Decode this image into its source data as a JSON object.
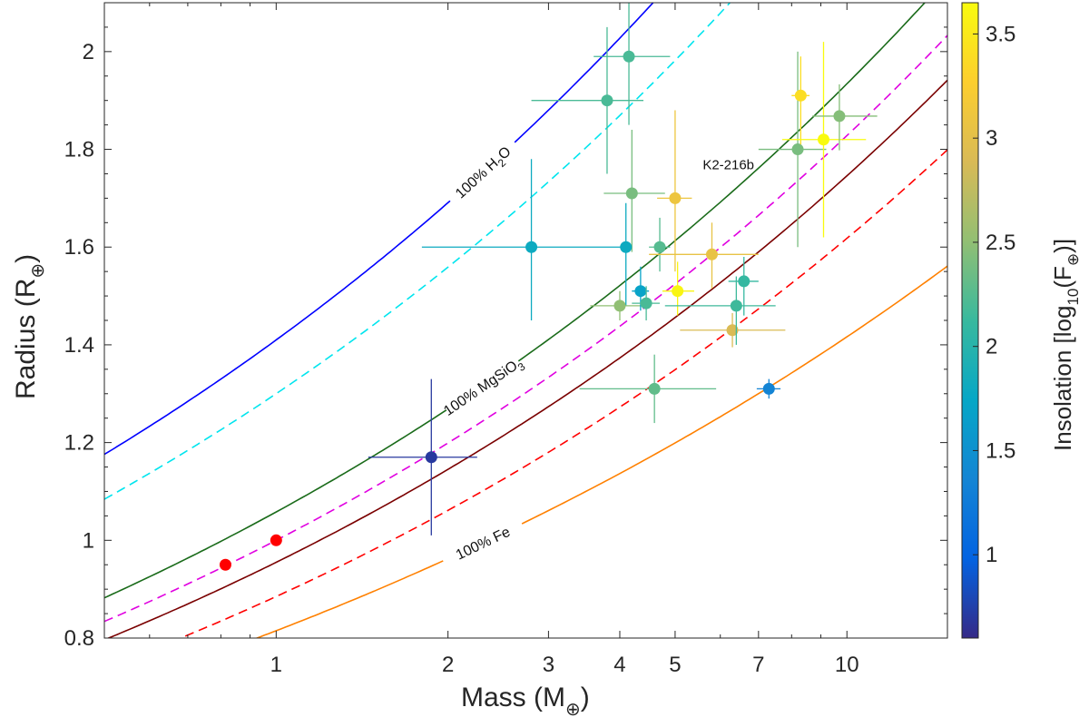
{
  "chart_data": {
    "type": "scatter",
    "xlabel": {
      "text": "Mass (M",
      "sub": "⊕",
      "close": ")"
    },
    "ylabel": {
      "text": "Radius (R",
      "sub": "⊕",
      "close": ")"
    },
    "x_scale": "log",
    "xlim": [
      0.5,
      15
    ],
    "ylim": [
      0.8,
      2.1
    ],
    "x_ticks": [
      1,
      2,
      3,
      4,
      5,
      7,
      10
    ],
    "y_ticks": [
      0.8,
      1.0,
      1.2,
      1.4,
      1.6,
      1.8,
      2.0
    ],
    "x_tick_labels": [
      "1",
      "2",
      "3",
      "4",
      "5",
      "7",
      "10"
    ],
    "y_tick_labels": [
      "0.8",
      "1",
      "1.2",
      "1.4",
      "1.6",
      "1.8",
      "2"
    ],
    "grid": false,
    "colorbar": {
      "label_text": "Insolation [log",
      "label_sub1": "10",
      "label_mid": "(F",
      "label_sub2": "⊕",
      "label_close": ")]",
      "range": [
        0.6,
        3.65
      ],
      "ticks": [
        1,
        1.5,
        2,
        2.5,
        3,
        3.5
      ],
      "tick_labels": [
        "1",
        "1.5",
        "2",
        "2.5",
        "3",
        "3.5"
      ],
      "colormap": [
        "#352a87",
        "#0363e1",
        "#1485d4",
        "#06a7c6",
        "#38b99e",
        "#92bf73",
        "#d9ba56",
        "#fcce2e",
        "#f9fb0e"
      ]
    },
    "curves": [
      {
        "name": "100% H2O",
        "color": "#0000ff",
        "dash": "solid",
        "r_at_1": 1.41,
        "exp": 0.262,
        "label_parts": [
          "100% H",
          "2",
          "O"
        ],
        "label_x": 2.3
      },
      {
        "name": "cyan-dashed",
        "color": "#00e5ee",
        "dash": "dashed",
        "r_at_1": 1.3,
        "exp": 0.262
      },
      {
        "name": "100% MgSiO3",
        "color": "#1a6b1a",
        "dash": "solid",
        "r_at_1": 1.058,
        "exp": 0.262,
        "label_parts": [
          "100% MgSiO",
          "3",
          ""
        ],
        "label_x": 2.3
      },
      {
        "name": "magenta-dashed",
        "color": "#e000e0",
        "dash": "dashed",
        "r_at_1": 1.0,
        "exp": 0.262
      },
      {
        "name": "dark-red",
        "color": "#7a0000",
        "dash": "solid",
        "r_at_1": 0.955,
        "exp": 0.262
      },
      {
        "name": "red-dashed",
        "color": "#ff0000",
        "dash": "dashed",
        "r_at_1": 0.885,
        "exp": 0.262
      },
      {
        "name": "100% Fe",
        "color": "#ff8000",
        "dash": "solid",
        "r_at_1": 0.815,
        "exp": 0.24,
        "label_parts": [
          "100% Fe",
          "",
          ""
        ],
        "label_x": 2.3
      }
    ],
    "annotation": {
      "text": "K2-216b",
      "x": 6.2,
      "y": 1.77
    },
    "points": [
      {
        "m": 0.815,
        "r": 0.95,
        "c": "red"
      },
      {
        "m": 1.0,
        "r": 1.0,
        "c": "red"
      },
      {
        "m": 1.87,
        "r": 1.17,
        "dxl": 0.42,
        "dxh": 0.38,
        "dyl": 0.16,
        "dyh": 0.16,
        "ins": 0.7
      },
      {
        "m": 2.8,
        "r": 1.6,
        "dxl": 1.0,
        "dxh": 1.3,
        "dyl": 0.15,
        "dyh": 0.18,
        "ins": 1.8
      },
      {
        "m": 3.8,
        "r": 1.9,
        "dxl": 1.0,
        "dxh": 0.6,
        "dyl": 0.15,
        "dyh": 0.15,
        "ins": 2.2
      },
      {
        "m": 4.15,
        "r": 1.99,
        "dxl": 0.55,
        "dxh": 0.75,
        "dyl": 0.14,
        "dyh": 0.11,
        "ins": 2.2
      },
      {
        "m": 4.2,
        "r": 1.71,
        "dxl": 0.45,
        "dxh": 0.6,
        "dyl": 0.12,
        "dyh": 0.13,
        "ins": 2.4
      },
      {
        "m": 4.1,
        "r": 1.6,
        "dxl": 0.02,
        "dxh": 0.02,
        "dyl": 0.12,
        "dyh": 0.09,
        "ins": 1.8
      },
      {
        "m": 4.0,
        "r": 1.48,
        "dxl": 0.45,
        "dxh": 0.5,
        "dyl": 0.03,
        "dyh": 0.03,
        "ins": 2.5
      },
      {
        "m": 4.35,
        "r": 1.51,
        "dxl": 0.15,
        "dxh": 0.15,
        "dyl": 0.04,
        "dyh": 0.05,
        "ins": 1.7
      },
      {
        "m": 4.45,
        "r": 1.485,
        "dxl": 0.25,
        "dxh": 0.25,
        "dyl": 0.035,
        "dyh": 0.035,
        "ins": 2.2
      },
      {
        "m": 4.7,
        "r": 1.6,
        "dxl": 0.2,
        "dxh": 0.2,
        "dyl": 0.05,
        "dyh": 0.06,
        "ins": 2.25
      },
      {
        "m": 4.6,
        "r": 1.31,
        "dxl": 1.2,
        "dxh": 1.3,
        "dyl": 0.07,
        "dyh": 0.07,
        "ins": 2.3
      },
      {
        "m": 5.0,
        "r": 1.7,
        "dxl": 0.35,
        "dxh": 0.35,
        "dyl": 0.15,
        "dyh": 0.18,
        "ins": 3.1
      },
      {
        "m": 5.05,
        "r": 1.51,
        "dxl": 0.3,
        "dxh": 0.35,
        "dyl": 0.05,
        "dyh": 0.06,
        "ins": 3.6
      },
      {
        "m": 5.8,
        "r": 1.585,
        "dxl": 1.3,
        "dxh": 1.2,
        "dyl": 0.07,
        "dyh": 0.065,
        "ins": 3.05
      },
      {
        "m": 6.3,
        "r": 1.43,
        "dxl": 1.2,
        "dxh": 1.5,
        "dyl": 0.035,
        "dyh": 0.035,
        "ins": 2.9
      },
      {
        "m": 6.6,
        "r": 1.53,
        "dxl": 0.4,
        "dxh": 0.4,
        "dyl": 0.07,
        "dyh": 0.05,
        "ins": 2.1
      },
      {
        "m": 6.4,
        "r": 1.48,
        "dxl": 1.6,
        "dxh": 1.1,
        "dyl": 0.08,
        "dyh": 0.06,
        "ins": 2.15
      },
      {
        "m": 7.3,
        "r": 1.31,
        "dxl": 0.35,
        "dxh": 0.35,
        "dyl": 0.02,
        "dyh": 0.02,
        "ins": 1.35
      },
      {
        "m": 8.2,
        "r": 1.8,
        "dxl": 1.2,
        "dxh": 1.0,
        "dyl": 0.2,
        "dyh": 0.2,
        "ins": 2.4
      },
      {
        "m": 8.3,
        "r": 1.91,
        "dxl": 0.3,
        "dxh": 0.3,
        "dyl": 0.1,
        "dyh": 0.08,
        "ins": 3.4
      },
      {
        "m": 9.1,
        "r": 1.82,
        "dxl": 1.4,
        "dxh": 1.7,
        "dyl": 0.2,
        "dyh": 0.2,
        "ins": 3.65
      },
      {
        "m": 9.7,
        "r": 1.868,
        "dxl": 1.0,
        "dxh": 1.6,
        "dyl": 0.07,
        "dyh": 0.065,
        "ins": 2.45
      }
    ]
  }
}
